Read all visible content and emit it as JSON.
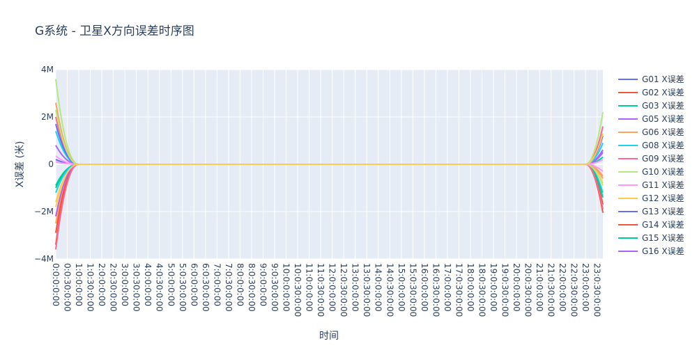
{
  "chart_data": {
    "type": "line",
    "title": "G系统 - 卫星X方向误差时序图",
    "xlabel": "时间",
    "ylabel": "X误差 (米)",
    "ylim": [
      -4000000,
      4000000
    ],
    "yticks": [
      {
        "value": 4000000,
        "label": "4M"
      },
      {
        "value": 2000000,
        "label": "2M"
      },
      {
        "value": 0,
        "label": "0"
      },
      {
        "value": -2000000,
        "label": "−2M"
      },
      {
        "value": -4000000,
        "label": "−4M"
      }
    ],
    "xticks": [
      "0:0:0:0:00",
      "0:0:30:0:00",
      "1:0:0:0:00",
      "1:0:30:0:00",
      "2:0:0:0:00",
      "2:0:30:0:00",
      "3:0:0:0:00",
      "3:0:30:0:00",
      "4:0:0:0:00",
      "4:0:30:0:00",
      "5:0:0:0:00",
      "5:0:30:0:00",
      "6:0:0:0:00",
      "6:0:30:0:00",
      "7:0:0:0:00",
      "7:0:30:0:00",
      "8:0:0:0:00",
      "8:0:30:0:00",
      "9:0:0:0:00",
      "9:0:30:0:00",
      "10:0:0:0:00",
      "10:0:30:0:00",
      "11:0:0:0:00",
      "11:0:30:0:00",
      "12:0:0:0:00",
      "12:0:30:0:00",
      "13:0:0:0:00",
      "13:0:30:0:00",
      "14:0:0:0:00",
      "14:0:30:0:00",
      "15:0:0:0:00",
      "15:0:30:0:00",
      "16:0:0:0:00",
      "16:0:30:0:00",
      "17:0:0:0:00",
      "17:0:30:0:00",
      "18:0:0:0:00",
      "18:0:30:0:00",
      "19:0:0:0:00",
      "19:0:30:0:00",
      "20:0:0:0:00",
      "20:0:30:0:00",
      "21:0:0:0:00",
      "21:0:30:0:00",
      "22:0:0:0:00",
      "22:0:30:0:00",
      "23:0:0:0:00",
      "23:0:30:0:00"
    ],
    "xrange_hours": [
      0,
      23.75
    ],
    "grid": true,
    "legend_position": "right",
    "series": [
      {
        "name": "G01 X误差",
        "color": "#636efa",
        "start": 200000,
        "end": 600000
      },
      {
        "name": "G02 X误差",
        "color": "#EF553B",
        "start": -3400000,
        "end": -2050000
      },
      {
        "name": "G03 X误差",
        "color": "#00cc96",
        "start": -1000000,
        "end": 300000
      },
      {
        "name": "G05 X误差",
        "color": "#ab63fa",
        "start": 800000,
        "end": 500000
      },
      {
        "name": "G06 X误差",
        "color": "#FFA15A",
        "start": -2500000,
        "end": -500000
      },
      {
        "name": "G08 X误差",
        "color": "#19d3f3",
        "start": 1400000,
        "end": -1200000
      },
      {
        "name": "G09 X误差",
        "color": "#FF6692",
        "start": 2000000,
        "end": 1600000
      },
      {
        "name": "G10 X误差",
        "color": "#B6E880",
        "start": 3600000,
        "end": 2200000
      },
      {
        "name": "G11 X误差",
        "color": "#FF97FF",
        "start": 350000,
        "end": -300000
      },
      {
        "name": "G12 X误差",
        "color": "#FECB52",
        "start": -1800000,
        "end": -800000
      },
      {
        "name": "G13 X误差",
        "color": "#636efa",
        "start": 1700000,
        "end": 1200000
      },
      {
        "name": "G14 X误差",
        "color": "#EF553B",
        "start": -2900000,
        "end": -1700000
      },
      {
        "name": "G15 X误差",
        "color": "#00cc96",
        "start": -900000,
        "end": -1400000
      },
      {
        "name": "G16 X误差",
        "color": "#ab63fa",
        "start": -2200000,
        "end": 600000
      },
      {
        "name": "",
        "color": "#FFA15A",
        "start": 2600000,
        "end": -600000
      },
      {
        "name": "",
        "color": "#19d3f3",
        "start": -1200000,
        "end": 900000
      },
      {
        "name": "",
        "color": "#FF6692",
        "start": -3600000,
        "end": -1900000
      },
      {
        "name": "",
        "color": "#B6E880",
        "start": 2300000,
        "end": -900000
      },
      {
        "name": "",
        "color": "#FF97FF",
        "start": 100000,
        "end": 200000
      },
      {
        "name": "",
        "color": "#FECB52",
        "start": -1600000,
        "end": 1300000
      }
    ]
  }
}
